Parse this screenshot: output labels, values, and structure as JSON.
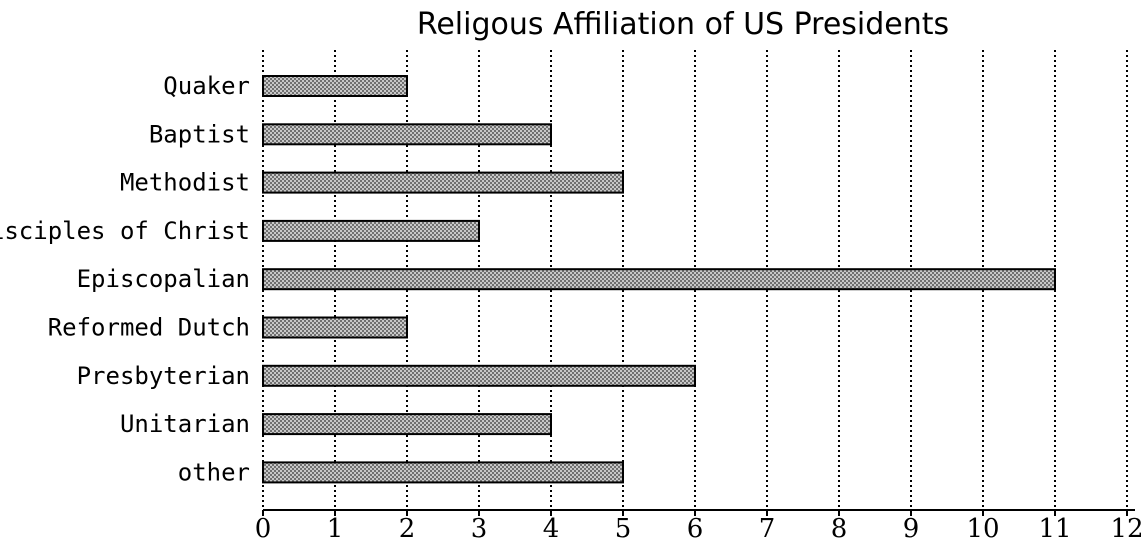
{
  "chart_data": {
    "type": "bar",
    "orientation": "horizontal",
    "title": "Religous Affiliation of US Presidents",
    "xlabel": "",
    "ylabel": "",
    "categories": [
      "Quaker",
      "Baptist",
      "Methodist",
      "Disciples of Christ",
      "Episcopalian",
      "Reformed Dutch",
      "Presbyterian",
      "Unitarian",
      "other"
    ],
    "values": [
      2,
      4,
      5,
      3,
      11,
      2,
      6,
      4,
      5
    ],
    "xlim": [
      0,
      12
    ],
    "x_ticks": [
      "0",
      "1",
      "2",
      "3",
      "4",
      "5",
      "6",
      "7",
      "8",
      "9",
      "10",
      "11",
      "12"
    ],
    "grid": "vertical-dotted",
    "legend": "none",
    "bar_fill": "#a8a8a8",
    "bar_border": "#000000"
  }
}
